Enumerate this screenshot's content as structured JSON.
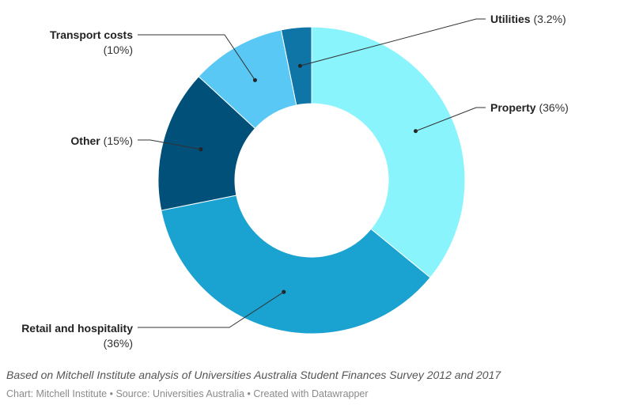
{
  "chart_data": {
    "type": "pie",
    "donut": true,
    "categories": [
      "Utilities",
      "Property",
      "Retail and hospitality",
      "Other",
      "Transport costs"
    ],
    "values": [
      3.2,
      36,
      36,
      15,
      10
    ],
    "value_labels": [
      "(3.2%)",
      "(36%)",
      "(36%)",
      "(15%)",
      "(10%)"
    ],
    "colors": [
      "#0e75a6",
      "#8af4fd",
      "#1aa2d0",
      "#00507a",
      "#5ac8f5"
    ],
    "legend": "none"
  },
  "notes": {
    "description": "Based on Mitchell Institute analysis of Universities Australia Student Finances Survey 2012 and 2017",
    "credit": "Chart: Mitchell Institute • Source: Universities Australia • Created with Datawrapper"
  }
}
